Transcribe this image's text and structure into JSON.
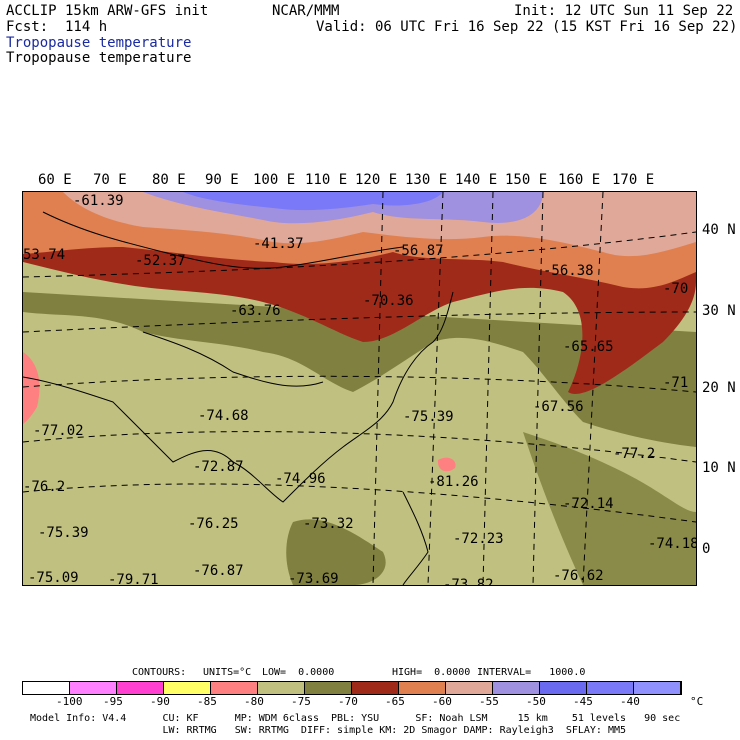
{
  "header": {
    "left_line1": "ACCLIP 15km ARW-GFS init",
    "left_line2": "Fcst:  114 h",
    "center": "NCAR/MMM",
    "right_line1": "Init: 12 UTC Sun 11 Sep 22",
    "right_line2": "Valid: 06 UTC Fri 16 Sep 22 (15 KST Fri 16 Sep 22)",
    "field_title_blue": "Tropopause temperature",
    "field_title_black": "Tropopause temperature"
  },
  "axes": {
    "lon_labels": [
      "60 E",
      "70 E",
      "80 E",
      "90 E",
      "100 E",
      "110 E",
      "120 E",
      "130 E",
      "140 E",
      "150 E",
      "160 E",
      "170 E"
    ],
    "lat_labels": [
      "40 N",
      "30 N",
      "20 N",
      "10 N",
      "0"
    ]
  },
  "map_labels": [
    {
      "text": "-61.39"
    },
    {
      "text": "-41.37"
    },
    {
      "text": "-56.87"
    },
    {
      "text": "-56.38"
    },
    {
      "text": "53.74"
    },
    {
      "text": "-52.37"
    },
    {
      "text": "-70"
    },
    {
      "text": "-70.36"
    },
    {
      "text": "-63.76"
    },
    {
      "text": "-65.65"
    },
    {
      "text": "-71"
    },
    {
      "text": "-74.68"
    },
    {
      "text": "-75.39"
    },
    {
      "text": "-67.56"
    },
    {
      "text": "-77.02"
    },
    {
      "text": "-72.87"
    },
    {
      "text": "-77.2"
    },
    {
      "text": "-76.2"
    },
    {
      "text": "-74.96"
    },
    {
      "text": "-81.26"
    },
    {
      "text": "-72.14"
    },
    {
      "text": "-76.25"
    },
    {
      "text": "-73.32"
    },
    {
      "text": "-75.39"
    },
    {
      "text": "-72.23"
    },
    {
      "text": "-74.18"
    },
    {
      "text": "-75.09"
    },
    {
      "text": "-79.71"
    },
    {
      "text": "-76.87"
    },
    {
      "text": "-73.69"
    },
    {
      "text": "-76.62"
    },
    {
      "text": "-73.82"
    }
  ],
  "contour_info": {
    "contours": "CONTOURS:",
    "units": "UNITS=°C",
    "low": "LOW=  0.0000",
    "high": "HIGH=  0.0000",
    "interval": "INTERVAL=   1000.0"
  },
  "colorbar": {
    "colors": [
      "#ffffff",
      "#ff80ff",
      "#ff40d0",
      "#ffff66",
      "#ff8080",
      "#c0c080",
      "#808040",
      "#a02a1a",
      "#e08050",
      "#e0a898",
      "#a090e0",
      "#6a6af0",
      "#7a7af8",
      "#9090ff"
    ],
    "labels": [
      "-100",
      "-95",
      "-90",
      "-85",
      "-80",
      "-75",
      "-70",
      "-65",
      "-60",
      "-55",
      "-50",
      "-45",
      "-40"
    ],
    "unit": "°C"
  },
  "model_info": {
    "line1": "Model Info: V4.4      CU: KF      MP: WDM 6class  PBL: YSU      SF: Noah LSM     15 km    51 levels   90 sec",
    "line2": "                      LW: RRTMG   SW: RRTMG  DIFF: simple KM: 2D Smagor DAMP: Rayleigh3  SFLAY: MM5"
  }
}
